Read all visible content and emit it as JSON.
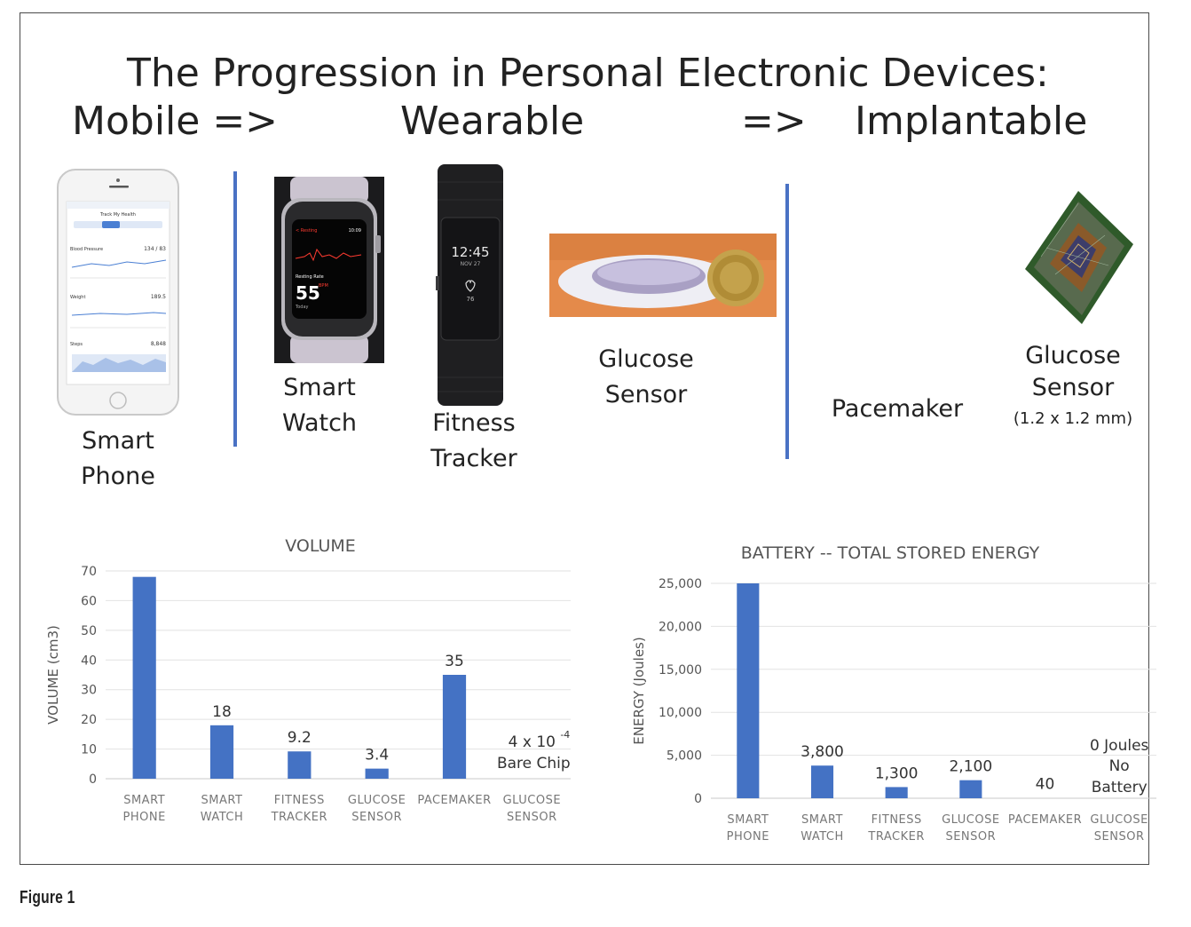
{
  "header": {
    "title_line1": "The Progression in Personal Electronic Devices:",
    "title_mobile": "Mobile =>",
    "title_wearable": "Wearable",
    "title_arrow": "=>",
    "title_implantable": "Implantable"
  },
  "devices": {
    "smartphone": [
      "Smart",
      "Phone"
    ],
    "smartwatch": [
      "Smart",
      "Watch"
    ],
    "fitness": [
      "Fitness",
      "Tracker"
    ],
    "glucose_wearable": [
      "Glucose",
      "Sensor"
    ],
    "pacemaker": "Pacemaker",
    "glucose_implant": [
      "Glucose",
      "Sensor"
    ],
    "glucose_implant_size": "(1.2 x 1.2 mm)"
  },
  "phone_screen": {
    "app_title": "Track My Health",
    "rows": [
      {
        "label": "Blood Pressure",
        "value": "134 / 83"
      },
      {
        "label": "Weight",
        "value": "189.5"
      },
      {
        "label": "Steps",
        "value": "8,848"
      }
    ]
  },
  "watch_screen": {
    "status": "< Resting",
    "time": "10:09",
    "label": "Resting Rate",
    "bpm": "55",
    "unit": "BPM",
    "day": "Today"
  },
  "tracker_screen": {
    "time": "12:45",
    "date": "NOV 27",
    "hr": "76"
  },
  "chart_data": [
    {
      "type": "bar",
      "title": "VOLUME",
      "ylabel": "VOLUME (cm3)",
      "xlabel": "",
      "ylim": [
        0,
        70
      ],
      "yticks": [
        0,
        10,
        20,
        30,
        40,
        50,
        60,
        70
      ],
      "ytick_labels": [
        "0",
        "10",
        "20",
        "30",
        "40",
        "50",
        "60",
        "70"
      ],
      "categories": [
        [
          "SMART",
          "PHONE"
        ],
        [
          "SMART",
          "WATCH"
        ],
        [
          "FITNESS",
          "TRACKER"
        ],
        [
          "GLUCOSE",
          "SENSOR"
        ],
        [
          "PACEMAKER"
        ],
        [
          "GLUCOSE",
          "SENSOR"
        ]
      ],
      "values": [
        68,
        18,
        9.2,
        3.4,
        35,
        0.0004
      ],
      "data_labels": [
        "",
        "18",
        "9.2",
        "3.4",
        "35",
        ""
      ],
      "annotation": {
        "base": "4 x 10",
        "exp": "-4",
        "line2": "Bare Chip"
      },
      "bar_color": "#4472c4",
      "grid": true
    },
    {
      "type": "bar",
      "title": "BATTERY -- TOTAL STORED ENERGY",
      "ylabel": "ENERGY (Joules)",
      "xlabel": "",
      "ylim": [
        0,
        25000
      ],
      "yticks": [
        0,
        5000,
        10000,
        15000,
        20000,
        25000
      ],
      "ytick_labels": [
        "0",
        "5,000",
        "10,000",
        "15,000",
        "20,000",
        "25,000"
      ],
      "categories": [
        [
          "SMART",
          "PHONE"
        ],
        [
          "SMART",
          "WATCH"
        ],
        [
          "FITNESS",
          "TRACKER"
        ],
        [
          "GLUCOSE",
          "SENSOR"
        ],
        [
          "PACEMAKER"
        ],
        [
          "GLUCOSE",
          "SENSOR"
        ]
      ],
      "values": [
        25000,
        3800,
        1300,
        2100,
        40,
        0
      ],
      "data_labels": [
        "",
        "3,800",
        "1,300",
        "2,100",
        "40",
        ""
      ],
      "annotation": {
        "line1": "0 Joules",
        "line2": "No",
        "line3": "Battery"
      },
      "bar_color": "#4472c4",
      "grid": true
    }
  ],
  "caption": "Figure 1",
  "colors": {
    "accent": "#4472c4",
    "separator": "#4a72c4"
  }
}
